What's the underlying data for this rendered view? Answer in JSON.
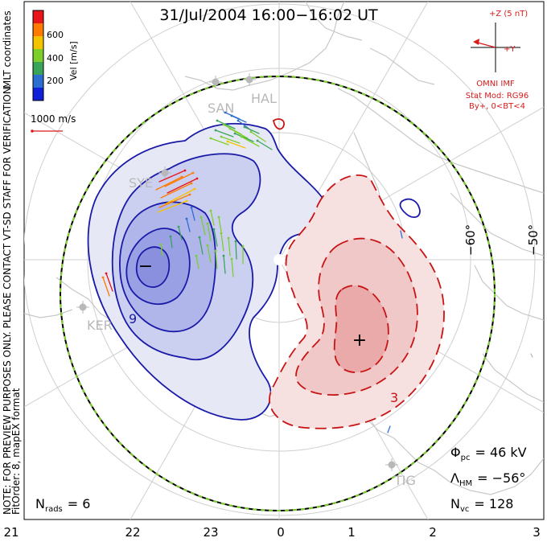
{
  "title": "31/Jul/2004 16:00−16:02 UT",
  "color_scale": {
    "label": "Vel [m/s]",
    "ticks": [
      "600",
      "400",
      "200"
    ],
    "colors": [
      "#e8151a",
      "#ff7a00",
      "#f5c400",
      "#7ccf2a",
      "#3aa35a",
      "#2b6dd1",
      "#1020d8"
    ]
  },
  "coord_label": "MLT coordinates",
  "ref_vector": {
    "label": "1000 m/s",
    "color": "#d81b1b"
  },
  "imf": {
    "z_label": "+Z (5 nT)",
    "y_label": "+Y",
    "caption": "OMNI IMF",
    "model_line1": "Stat Mod: RG96",
    "model_line2": "By+, 0<BT<4",
    "color": "#d81b1b"
  },
  "stations": [
    "SAN",
    "HAL",
    "SYE",
    "KER",
    "TIG"
  ],
  "lat_labels": [
    "−60°",
    "−50°"
  ],
  "contour_labels": [
    "9",
    "3"
  ],
  "stats": {
    "phi": "Φ",
    "phi_sub": "pc",
    "phi_value": "= 46 kV",
    "lambda": "Λ",
    "lambda_sub": "HM",
    "lambda_value": "= −56°",
    "nvc": "N",
    "nvc_sub": "vc",
    "nvc_value": "= 128"
  },
  "nrads": {
    "n": "N",
    "sub": "rads",
    "value": "= 6"
  },
  "note": "NOTE: FOR PREVIEW PURPOSES ONLY. PLEASE CONTACT VT-SD STAFF FOR VERIFICATION.",
  "fit_line": "FitOrder: 8, mapEX format",
  "mlt_axis": [
    "21",
    "22",
    "23",
    "0",
    "1",
    "2",
    "3"
  ],
  "minmax": {
    "min": "−",
    "max": "+"
  },
  "map_colors": {
    "negative_cell": "#1a1aa8",
    "positive_cell": "#c81414",
    "hm_boundary": "#7ccf2a",
    "coast": "#c8c8c8",
    "grid": "#cfcfcf"
  }
}
